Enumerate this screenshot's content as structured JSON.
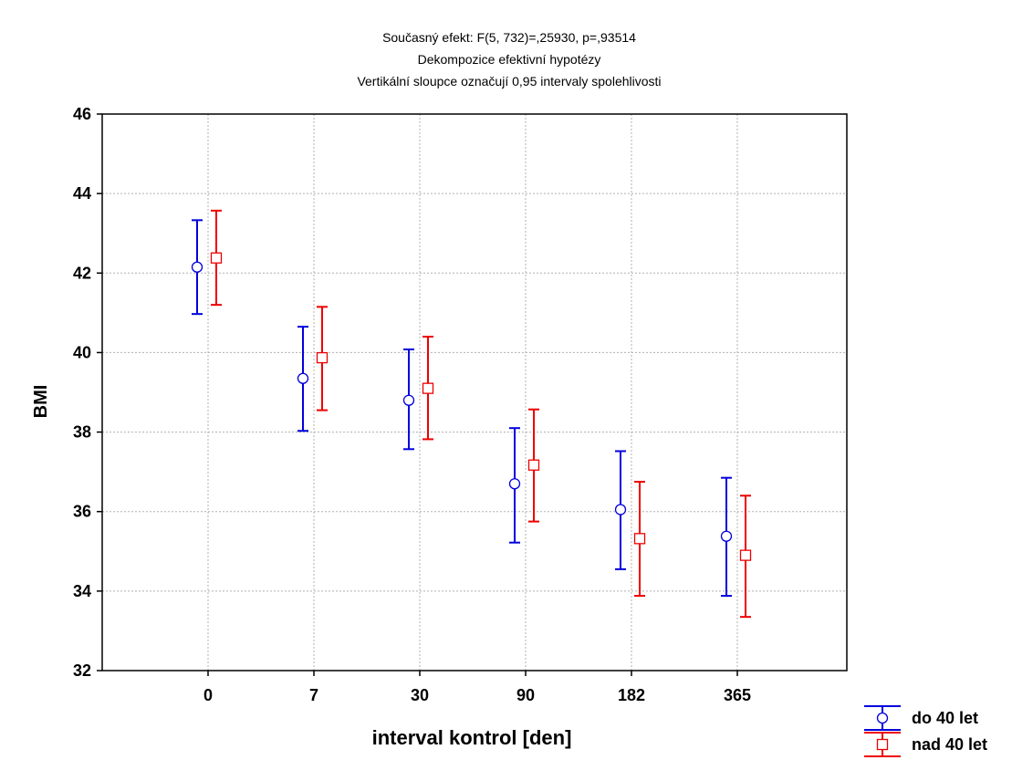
{
  "chart_data": {
    "type": "scatter",
    "title_lines": [
      "Současný efekt: F(5, 732)=,25930, p=,93514",
      "Dekompozice efektivní hypotézy",
      "Vertikální sloupce označují 0,95 intervaly spolehlivosti"
    ],
    "xlabel": "interval kontrol  [den]",
    "ylabel": "BMI",
    "categories": [
      "0",
      "7",
      "30",
      "90",
      "182",
      "365"
    ],
    "ylim": [
      32,
      46
    ],
    "yticks": [
      "32",
      "34",
      "36",
      "38",
      "40",
      "42",
      "44",
      "46"
    ],
    "grid": true,
    "legend_position": "bottom-right",
    "series": [
      {
        "name": "do 40 let",
        "color": "#0000dd",
        "marker": "circle",
        "values": [
          42.15,
          39.35,
          38.8,
          36.7,
          36.05,
          35.38
        ],
        "lower": [
          40.97,
          38.03,
          37.57,
          35.22,
          34.55,
          33.88
        ],
        "upper": [
          43.33,
          40.65,
          40.08,
          38.1,
          37.52,
          36.85
        ]
      },
      {
        "name": "nad 40 let",
        "color": "#ee0000",
        "marker": "square",
        "values": [
          42.38,
          39.87,
          39.1,
          37.17,
          35.32,
          34.9
        ],
        "lower": [
          41.2,
          38.55,
          37.82,
          35.75,
          33.88,
          33.35
        ],
        "upper": [
          43.57,
          41.15,
          40.4,
          38.57,
          36.75,
          36.4
        ]
      }
    ]
  }
}
